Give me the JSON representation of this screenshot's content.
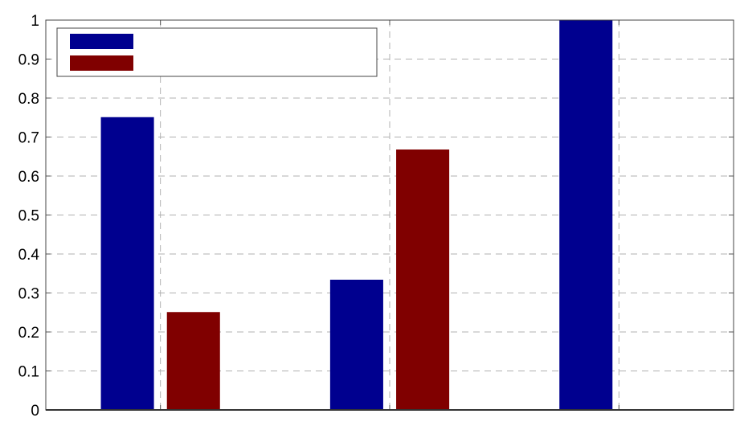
{
  "chart_data": {
    "type": "bar",
    "title": "",
    "xlabel": "",
    "ylabel": "",
    "categories": [
      "1",
      "2",
      "3"
    ],
    "show_x_tick_labels": false,
    "xlim": [
      0.5,
      3.5
    ],
    "ylim": [
      0,
      1
    ],
    "yticks": [
      0,
      0.1,
      0.2,
      0.3,
      0.4,
      0.5,
      0.6,
      0.7,
      0.8,
      0.9,
      1
    ],
    "ytick_labels": [
      "0",
      "0.1",
      "0.2",
      "0.3",
      "0.4",
      "0.5",
      "0.6",
      "0.7",
      "0.8",
      "0.9",
      "1"
    ],
    "grid": true,
    "legend": {
      "placement": "top-left",
      "entries_have_text": false
    },
    "series": [
      {
        "color": "#00008f",
        "values": [
          0.75,
          0.333,
          1.0
        ]
      },
      {
        "color": "#800000",
        "values": [
          0.25,
          0.667,
          0.0
        ]
      }
    ]
  }
}
